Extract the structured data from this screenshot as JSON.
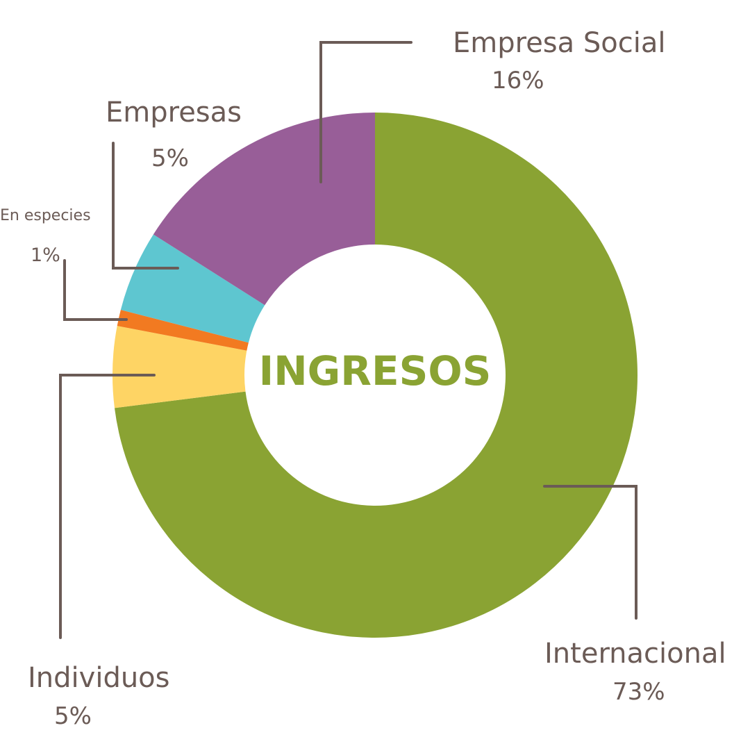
{
  "chart_data": {
    "type": "pie",
    "title": "INGRESOS",
    "slices": [
      {
        "label": "Internacional",
        "value": 73,
        "value_label": "73%",
        "color": "#8aa333"
      },
      {
        "label": "Individuos",
        "value": 5,
        "value_label": "5%",
        "color": "#fed464"
      },
      {
        "label": "En especies",
        "value": 1,
        "value_label": "1%",
        "color": "#f27a21"
      },
      {
        "label": "Empresas",
        "value": 5,
        "value_label": "5%",
        "color": "#5ec6d0"
      },
      {
        "label": "Empresa Social",
        "value": 16,
        "value_label": "16%",
        "color": "#985e98"
      }
    ],
    "title_color": "#8aa333",
    "label_color": "#6b5b56",
    "leader_color": "#6b5b56"
  }
}
